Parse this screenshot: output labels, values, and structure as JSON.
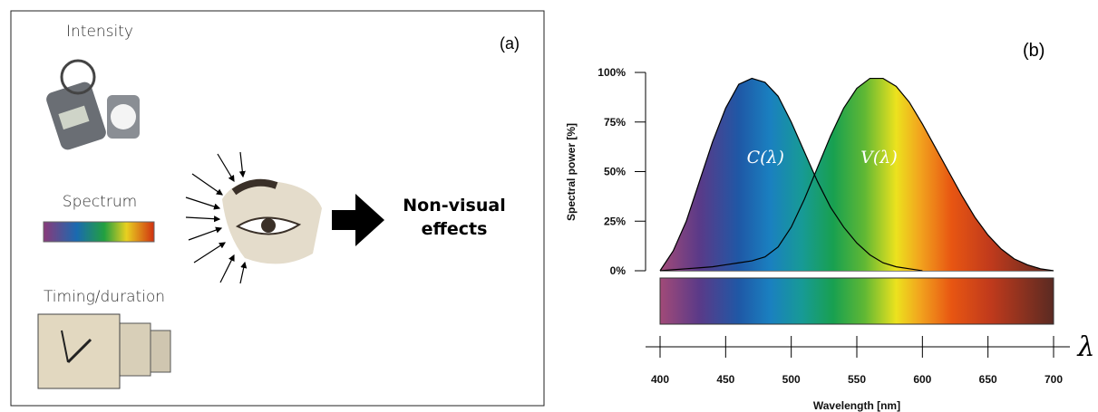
{
  "panel_a": {
    "label": "(a)",
    "inputs": [
      "Intensity",
      "Spectrum",
      "Timing/duration"
    ],
    "output": "Non-visual effects"
  },
  "chart_data": {
    "type": "area",
    "label": "(b)",
    "symbol": "λ",
    "xlabel": "Wavelength [nm]",
    "ylabel": "Spectral power [%]",
    "x": [
      400,
      410,
      420,
      430,
      440,
      450,
      460,
      470,
      480,
      490,
      500,
      510,
      520,
      530,
      540,
      550,
      560,
      570,
      580,
      590,
      600,
      610,
      620,
      630,
      640,
      650,
      660,
      670,
      680,
      690,
      700
    ],
    "series": [
      {
        "name": "C(λ)",
        "color": "#000000",
        "values": [
          0,
          10,
          25,
          45,
          65,
          82,
          94,
          97,
          95,
          88,
          75,
          60,
          45,
          32,
          22,
          14,
          8,
          4,
          2,
          1,
          0,
          null,
          null,
          null,
          null,
          null,
          null,
          null,
          null,
          null,
          null
        ]
      },
      {
        "name": "V(λ)",
        "color": "#000000",
        "values": [
          0,
          0.5,
          1,
          1.5,
          2,
          3,
          4,
          5,
          7,
          12,
          22,
          36,
          52,
          68,
          82,
          92,
          97,
          97,
          93,
          85,
          74,
          62,
          50,
          38,
          27,
          18,
          11,
          6,
          3,
          1,
          0
        ]
      }
    ],
    "xlim": [
      400,
      700
    ],
    "xticks": [
      400,
      450,
      500,
      550,
      600,
      650,
      700
    ],
    "ylim": [
      0,
      100
    ],
    "yticks": [
      {
        "value": 0,
        "label": "0%"
      },
      {
        "value": 25,
        "label": "25%"
      },
      {
        "value": 50,
        "label": "50%"
      },
      {
        "value": 75,
        "label": "75%"
      },
      {
        "value": 100,
        "label": "100%"
      }
    ]
  }
}
